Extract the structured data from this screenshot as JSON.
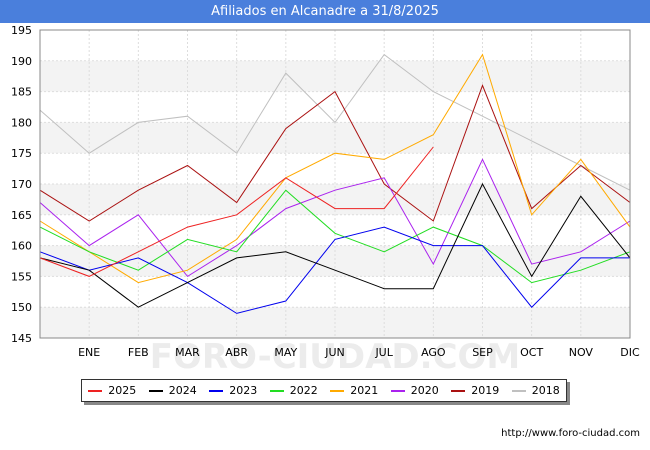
{
  "header": {
    "title": "Afiliados en Alcanadre a 31/8/2025"
  },
  "source": "http://www.foro-ciudad.com",
  "watermark": "FORO-CIUDAD.COM",
  "chart_data": {
    "type": "line",
    "title": "Afiliados en Alcanadre a 31/8/2025",
    "categories": [
      "",
      "ENE",
      "FEB",
      "MAR",
      "ABR",
      "MAY",
      "JUN",
      "JUL",
      "AGO",
      "SEP",
      "OCT",
      "NOV",
      "DIC"
    ],
    "ylim": [
      145,
      195
    ],
    "yticks": [
      145,
      150,
      155,
      160,
      165,
      170,
      175,
      180,
      185,
      190,
      195
    ],
    "grid": true,
    "legend": "bottom",
    "series": [
      {
        "name": "2025",
        "color": "#ee2222",
        "values": [
          158,
          155,
          159,
          163,
          165,
          171,
          166,
          166,
          176,
          null,
          null,
          null,
          null
        ]
      },
      {
        "name": "2024",
        "color": "#000000",
        "values": [
          158,
          156,
          150,
          154,
          158,
          159,
          156,
          153,
          153,
          170,
          155,
          168,
          158
        ]
      },
      {
        "name": "2023",
        "color": "#0000ee",
        "values": [
          159,
          156,
          158,
          154,
          149,
          151,
          161,
          163,
          160,
          160,
          150,
          158,
          158
        ]
      },
      {
        "name": "2022",
        "color": "#22dd22",
        "values": [
          163,
          159,
          156,
          161,
          159,
          169,
          162,
          159,
          163,
          160,
          154,
          156,
          159
        ]
      },
      {
        "name": "2021",
        "color": "#ffaa00",
        "values": [
          164,
          159,
          154,
          156,
          161,
          171,
          175,
          174,
          178,
          191,
          165,
          174,
          163
        ]
      },
      {
        "name": "2020",
        "color": "#aa22ee",
        "values": [
          167,
          160,
          165,
          155,
          160,
          166,
          169,
          171,
          157,
          174,
          157,
          159,
          164
        ]
      },
      {
        "name": "2019",
        "color": "#aa1111",
        "values": [
          169,
          164,
          169,
          173,
          167,
          179,
          185,
          170,
          164,
          186,
          166,
          173,
          167
        ]
      },
      {
        "name": "2018",
        "color": "#c0c0c0",
        "values": [
          182,
          175,
          180,
          181,
          175,
          188,
          180,
          191,
          185,
          181,
          177,
          173,
          169
        ]
      }
    ]
  }
}
